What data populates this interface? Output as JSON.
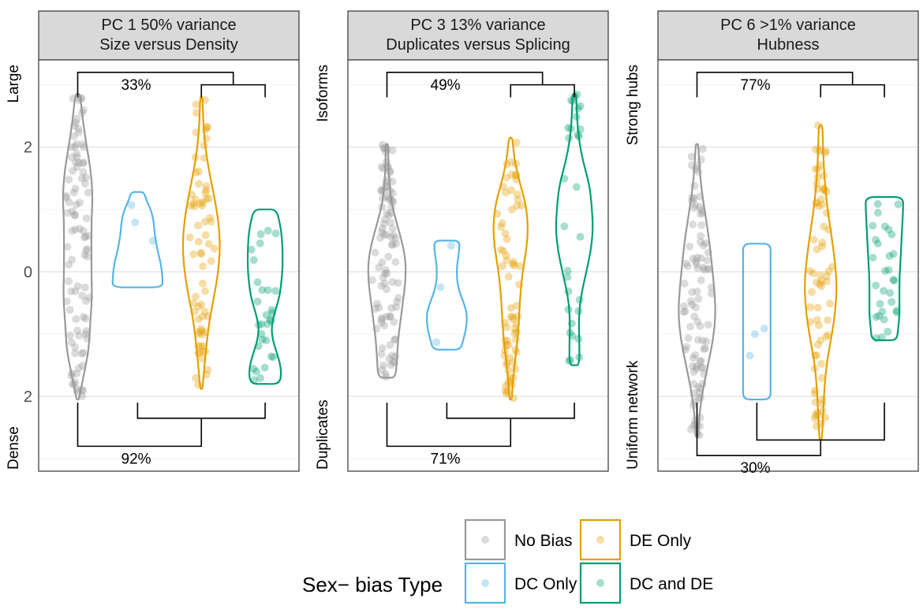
{
  "chart_data": {
    "type": "violin",
    "groups": [
      {
        "name": "No Bias",
        "color": "#999999"
      },
      {
        "name": "DC Only",
        "color": "#56B4E9"
      },
      {
        "name": "DE Only",
        "color": "#E69F00"
      },
      {
        "name": "DC and DE",
        "color": "#009E73"
      }
    ],
    "panels": [
      {
        "strip": [
          "PC 1 50% variance",
          "Size versus Density"
        ],
        "top_label": "Large",
        "bottom_label": "Dense",
        "ticks": [
          {
            "value": 2,
            "label": "2"
          },
          {
            "value": 0,
            "label": "0"
          },
          {
            "value": -2,
            "label": "2"
          }
        ],
        "ylim": [
          -3.2,
          3.4
        ],
        "violins": [
          {
            "min": -2.05,
            "max": 2.85,
            "half_widths": [
              0.02,
              0.1,
              0.18,
              0.2,
              0.23,
              0.22,
              0.22,
              0.22,
              0.24,
              0.21,
              0.14,
              0.08,
              0.04
            ]
          },
          {
            "min": -0.25,
            "max": 1.28,
            "half_widths": [
              0.4,
              0.4,
              0.39,
              0.37,
              0.34,
              0.31,
              0.29,
              0.27,
              0.26,
              0.24,
              0.2,
              0.14,
              0.1
            ]
          },
          {
            "min": -1.88,
            "max": 2.8,
            "half_widths": [
              0.02,
              0.05,
              0.09,
              0.14,
              0.22,
              0.28,
              0.3,
              0.27,
              0.2,
              0.12,
              0.06,
              0.03,
              0.02
            ]
          },
          {
            "min": -1.8,
            "max": 1.0,
            "half_widths": [
              0.24,
              0.26,
              0.2,
              0.12,
              0.1,
              0.16,
              0.23,
              0.26,
              0.28,
              0.28,
              0.27,
              0.24,
              0.18
            ]
          }
        ],
        "top_bracket": {
          "label": "33%",
          "y": 3.2,
          "sub_y": 3.0,
          "drop_y": 2.8
        },
        "bottom_bracket": {
          "label": "92%",
          "y": -2.8,
          "sub_y": -2.35,
          "drop_y": -2.1
        }
      },
      {
        "strip": [
          "PC 3 13% variance",
          "Duplicates versus Splicing"
        ],
        "top_label": "Isoforms",
        "bottom_label": "Duplicates",
        "ticks": [],
        "ylim": [
          -3.2,
          3.4
        ],
        "violins": [
          {
            "min": -1.7,
            "max": 2.05,
            "half_widths": [
              0.14,
              0.16,
              0.18,
              0.22,
              0.26,
              0.3,
              0.3,
              0.24,
              0.15,
              0.07,
              0.04,
              0.02,
              0.02
            ]
          },
          {
            "min": -1.25,
            "max": 0.5,
            "half_widths": [
              0.22,
              0.26,
              0.3,
              0.32,
              0.32,
              0.28,
              0.22,
              0.18,
              0.16,
              0.16,
              0.18,
              0.2,
              0.2
            ]
          },
          {
            "min": -2.05,
            "max": 2.15,
            "half_widths": [
              0.02,
              0.04,
              0.08,
              0.12,
              0.14,
              0.16,
              0.2,
              0.26,
              0.28,
              0.24,
              0.14,
              0.06,
              0.03
            ]
          },
          {
            "min": -1.5,
            "max": 2.85,
            "half_widths": [
              0.08,
              0.08,
              0.07,
              0.1,
              0.18,
              0.26,
              0.3,
              0.28,
              0.24,
              0.14,
              0.07,
              0.04,
              0.03
            ]
          }
        ],
        "top_bracket": {
          "label": "49%",
          "y": 3.2,
          "sub_y": 3.0,
          "drop_y": 2.8
        },
        "bottom_bracket": {
          "label": "71%",
          "y": -2.8,
          "sub_y": -2.35,
          "drop_y": -2.1
        }
      },
      {
        "strip": [
          "PC 6 >1% variance",
          "Hubness"
        ],
        "top_label": "Strong hubs",
        "bottom_label": "Uniform network",
        "ticks": [],
        "ylim": [
          -3.2,
          3.4
        ],
        "violins": [
          {
            "min": -2.65,
            "max": 2.05,
            "half_widths": [
              0.02,
              0.04,
              0.1,
              0.18,
              0.26,
              0.3,
              0.28,
              0.24,
              0.2,
              0.14,
              0.08,
              0.04,
              0.02
            ]
          },
          {
            "min": -2.05,
            "max": 0.45,
            "half_widths": [
              0.22,
              0.22,
              0.22,
              0.22,
              0.22,
              0.22,
              0.22,
              0.22,
              0.22,
              0.22,
              0.22,
              0.22,
              0.22
            ]
          },
          {
            "min": -2.7,
            "max": 2.35,
            "half_widths": [
              0.02,
              0.04,
              0.06,
              0.1,
              0.18,
              0.24,
              0.26,
              0.22,
              0.16,
              0.1,
              0.06,
              0.04,
              0.03
            ]
          },
          {
            "min": -1.1,
            "max": 1.2,
            "half_widths": [
              0.2,
              0.22,
              0.24,
              0.24,
              0.24,
              0.24,
              0.25,
              0.26,
              0.27,
              0.28,
              0.29,
              0.3,
              0.3
            ]
          }
        ],
        "top_bracket": {
          "label": "77%",
          "y": 3.2,
          "sub_y": 3.0,
          "drop_y": 2.8
        },
        "bottom_bracket": {
          "label": "30%",
          "y": -2.95,
          "sub_y": -2.7,
          "drop_y": -2.1
        }
      }
    ],
    "legend": {
      "title": "Sex− bias Type",
      "position": "bottom",
      "entries": [
        "No Bias",
        "DE Only",
        "DC Only",
        "DC and DE"
      ]
    },
    "grid": true
  }
}
